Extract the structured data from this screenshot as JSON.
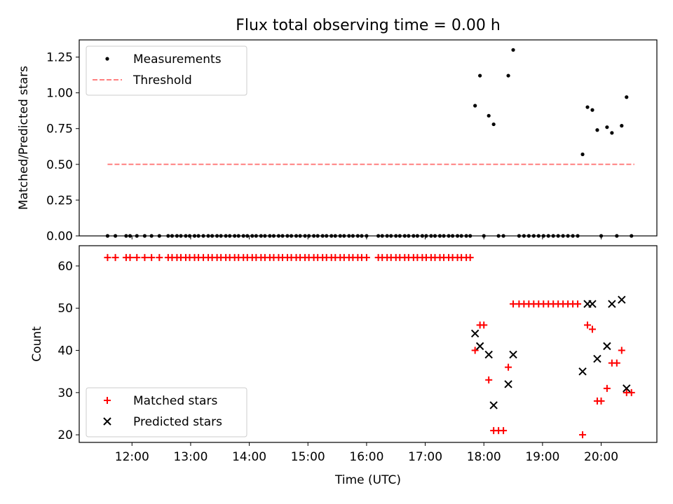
{
  "chart_data": [
    {
      "type": "scatter",
      "title": "Flux total observing time = 0.00 h",
      "xlabel": "",
      "ylabel": "Matched/Predicted stars",
      "xlim": [
        "11:06",
        "20:57"
      ],
      "ylim": [
        0,
        1.37
      ],
      "yticks": [
        0.0,
        0.25,
        0.5,
        0.75,
        1.0,
        1.25
      ],
      "yticklabels": [
        "0.00",
        "0.25",
        "0.50",
        "0.75",
        "1.00",
        "1.25"
      ],
      "legend_position": "top-left",
      "series": [
        {
          "name": "Measurements",
          "marker": "dot",
          "color": "#000000",
          "points": [
            [
              "11:35",
              0
            ],
            [
              "11:43",
              0
            ],
            [
              "11:54",
              0
            ],
            [
              "11:58",
              0
            ],
            [
              "12:05",
              0
            ],
            [
              "12:13",
              0
            ],
            [
              "12:20",
              0
            ],
            [
              "12:28",
              0
            ],
            [
              "12:37",
              0
            ],
            [
              "12:41",
              0
            ],
            [
              "12:46",
              0
            ],
            [
              "12:50",
              0
            ],
            [
              "12:55",
              0
            ],
            [
              "12:59",
              0
            ],
            [
              "13:04",
              0
            ],
            [
              "13:08",
              0
            ],
            [
              "13:13",
              0
            ],
            [
              "13:18",
              0
            ],
            [
              "13:22",
              0
            ],
            [
              "13:27",
              0
            ],
            [
              "13:31",
              0
            ],
            [
              "13:36",
              0
            ],
            [
              "13:40",
              0
            ],
            [
              "13:45",
              0
            ],
            [
              "13:49",
              0
            ],
            [
              "13:54",
              0
            ],
            [
              "13:58",
              0
            ],
            [
              "14:03",
              0
            ],
            [
              "14:07",
              0
            ],
            [
              "14:12",
              0
            ],
            [
              "14:16",
              0
            ],
            [
              "14:21",
              0
            ],
            [
              "14:25",
              0
            ],
            [
              "14:30",
              0
            ],
            [
              "14:34",
              0
            ],
            [
              "14:39",
              0
            ],
            [
              "14:43",
              0
            ],
            [
              "14:48",
              0
            ],
            [
              "14:52",
              0
            ],
            [
              "14:57",
              0
            ],
            [
              "15:01",
              0
            ],
            [
              "15:06",
              0
            ],
            [
              "15:10",
              0
            ],
            [
              "15:15",
              0
            ],
            [
              "15:19",
              0
            ],
            [
              "15:24",
              0
            ],
            [
              "15:28",
              0
            ],
            [
              "15:33",
              0
            ],
            [
              "15:37",
              0
            ],
            [
              "15:42",
              0
            ],
            [
              "15:46",
              0
            ],
            [
              "15:51",
              0
            ],
            [
              "15:55",
              0
            ],
            [
              "16:00",
              0
            ],
            [
              "16:12",
              0
            ],
            [
              "16:16",
              0
            ],
            [
              "16:21",
              0
            ],
            [
              "16:25",
              0
            ],
            [
              "16:30",
              0
            ],
            [
              "16:34",
              0
            ],
            [
              "16:39",
              0
            ],
            [
              "16:43",
              0
            ],
            [
              "16:48",
              0
            ],
            [
              "16:52",
              0
            ],
            [
              "16:57",
              0
            ],
            [
              "17:01",
              0
            ],
            [
              "17:06",
              0
            ],
            [
              "17:10",
              0
            ],
            [
              "17:15",
              0
            ],
            [
              "17:19",
              0
            ],
            [
              "17:24",
              0
            ],
            [
              "17:28",
              0
            ],
            [
              "17:33",
              0
            ],
            [
              "17:37",
              0
            ],
            [
              "17:42",
              0
            ],
            [
              "17:46",
              0
            ],
            [
              "17:51",
              0.91
            ],
            [
              "17:56",
              1.12
            ],
            [
              "18:00",
              0
            ],
            [
              "18:05",
              0.84
            ],
            [
              "18:10",
              0.78
            ],
            [
              "18:15",
              0
            ],
            [
              "18:20",
              0
            ],
            [
              "18:25",
              1.12
            ],
            [
              "18:30",
              1.3
            ],
            [
              "18:36",
              0
            ],
            [
              "18:41",
              0
            ],
            [
              "18:46",
              0
            ],
            [
              "18:51",
              0
            ],
            [
              "18:56",
              0
            ],
            [
              "19:01",
              0
            ],
            [
              "19:06",
              0
            ],
            [
              "19:11",
              0
            ],
            [
              "19:16",
              0
            ],
            [
              "19:21",
              0
            ],
            [
              "19:26",
              0
            ],
            [
              "19:31",
              0
            ],
            [
              "19:36",
              0
            ],
            [
              "19:41",
              0.57
            ],
            [
              "19:46",
              0.9
            ],
            [
              "19:51",
              0.88
            ],
            [
              "19:56",
              0.74
            ],
            [
              "20:00",
              0
            ],
            [
              "20:06",
              0.76
            ],
            [
              "20:11",
              0.72
            ],
            [
              "20:16",
              0
            ],
            [
              "20:21",
              0.77
            ],
            [
              "20:26",
              0.97
            ],
            [
              "20:31",
              0
            ]
          ]
        },
        {
          "name": "Threshold",
          "line": "dashed",
          "color": "#ff8080",
          "points": [
            [
              "11:35",
              0.5
            ],
            [
              "20:34",
              0.5
            ]
          ]
        }
      ]
    },
    {
      "type": "scatter",
      "title": "",
      "xlabel": "Time (UTC)",
      "ylabel": "Count",
      "xlim": [
        "11:06",
        "20:57"
      ],
      "ylim": [
        18.2,
        64.8
      ],
      "yticks": [
        20,
        30,
        40,
        50,
        60
      ],
      "yticklabels": [
        "20",
        "30",
        "40",
        "50",
        "60"
      ],
      "xticks": [
        "12:00",
        "13:00",
        "14:00",
        "15:00",
        "16:00",
        "17:00",
        "18:00",
        "19:00",
        "20:00"
      ],
      "legend_position": "bottom-left",
      "series": [
        {
          "name": "Matched stars",
          "marker": "plus",
          "color": "#ff0000",
          "points": [
            [
              "11:35",
              62
            ],
            [
              "11:43",
              62
            ],
            [
              "11:54",
              62
            ],
            [
              "11:58",
              62
            ],
            [
              "12:05",
              62
            ],
            [
              "12:13",
              62
            ],
            [
              "12:20",
              62
            ],
            [
              "12:28",
              62
            ],
            [
              "12:37",
              62
            ],
            [
              "12:41",
              62
            ],
            [
              "12:46",
              62
            ],
            [
              "12:50",
              62
            ],
            [
              "12:55",
              62
            ],
            [
              "12:59",
              62
            ],
            [
              "13:04",
              62
            ],
            [
              "13:08",
              62
            ],
            [
              "13:13",
              62
            ],
            [
              "13:18",
              62
            ],
            [
              "13:22",
              62
            ],
            [
              "13:27",
              62
            ],
            [
              "13:31",
              62
            ],
            [
              "13:36",
              62
            ],
            [
              "13:40",
              62
            ],
            [
              "13:45",
              62
            ],
            [
              "13:49",
              62
            ],
            [
              "13:54",
              62
            ],
            [
              "13:58",
              62
            ],
            [
              "14:03",
              62
            ],
            [
              "14:07",
              62
            ],
            [
              "14:12",
              62
            ],
            [
              "14:16",
              62
            ],
            [
              "14:21",
              62
            ],
            [
              "14:25",
              62
            ],
            [
              "14:30",
              62
            ],
            [
              "14:34",
              62
            ],
            [
              "14:39",
              62
            ],
            [
              "14:43",
              62
            ],
            [
              "14:48",
              62
            ],
            [
              "14:52",
              62
            ],
            [
              "14:57",
              62
            ],
            [
              "15:01",
              62
            ],
            [
              "15:06",
              62
            ],
            [
              "15:10",
              62
            ],
            [
              "15:15",
              62
            ],
            [
              "15:19",
              62
            ],
            [
              "15:24",
              62
            ],
            [
              "15:28",
              62
            ],
            [
              "15:33",
              62
            ],
            [
              "15:37",
              62
            ],
            [
              "15:42",
              62
            ],
            [
              "15:46",
              62
            ],
            [
              "15:51",
              62
            ],
            [
              "15:55",
              62
            ],
            [
              "16:00",
              62
            ],
            [
              "16:12",
              62
            ],
            [
              "16:16",
              62
            ],
            [
              "16:21",
              62
            ],
            [
              "16:25",
              62
            ],
            [
              "16:30",
              62
            ],
            [
              "16:34",
              62
            ],
            [
              "16:39",
              62
            ],
            [
              "16:43",
              62
            ],
            [
              "16:48",
              62
            ],
            [
              "16:52",
              62
            ],
            [
              "16:57",
              62
            ],
            [
              "17:01",
              62
            ],
            [
              "17:06",
              62
            ],
            [
              "17:10",
              62
            ],
            [
              "17:15",
              62
            ],
            [
              "17:19",
              62
            ],
            [
              "17:24",
              62
            ],
            [
              "17:28",
              62
            ],
            [
              "17:33",
              62
            ],
            [
              "17:37",
              62
            ],
            [
              "17:42",
              62
            ],
            [
              "17:46",
              62
            ],
            [
              "17:51",
              40
            ],
            [
              "17:56",
              46
            ],
            [
              "18:00",
              46
            ],
            [
              "18:05",
              33
            ],
            [
              "18:10",
              21
            ],
            [
              "18:15",
              21
            ],
            [
              "18:20",
              21
            ],
            [
              "18:25",
              36
            ],
            [
              "18:30",
              51
            ],
            [
              "18:36",
              51
            ],
            [
              "18:41",
              51
            ],
            [
              "18:46",
              51
            ],
            [
              "18:51",
              51
            ],
            [
              "18:56",
              51
            ],
            [
              "19:01",
              51
            ],
            [
              "19:06",
              51
            ],
            [
              "19:11",
              51
            ],
            [
              "19:16",
              51
            ],
            [
              "19:21",
              51
            ],
            [
              "19:26",
              51
            ],
            [
              "19:31",
              51
            ],
            [
              "19:36",
              51
            ],
            [
              "19:41",
              20
            ],
            [
              "19:46",
              46
            ],
            [
              "19:51",
              45
            ],
            [
              "19:56",
              28
            ],
            [
              "20:00",
              28
            ],
            [
              "20:06",
              31
            ],
            [
              "20:11",
              37
            ],
            [
              "20:16",
              37
            ],
            [
              "20:21",
              40
            ],
            [
              "20:26",
              30
            ],
            [
              "20:31",
              30
            ]
          ]
        },
        {
          "name": "Predicted stars",
          "marker": "x",
          "color": "#000000",
          "points": [
            [
              "17:51",
              44
            ],
            [
              "17:56",
              41
            ],
            [
              "18:05",
              39
            ],
            [
              "18:10",
              27
            ],
            [
              "18:25",
              32
            ],
            [
              "18:30",
              39
            ],
            [
              "19:41",
              35
            ],
            [
              "19:46",
              51
            ],
            [
              "19:51",
              51
            ],
            [
              "19:56",
              38
            ],
            [
              "20:06",
              41
            ],
            [
              "20:11",
              51
            ],
            [
              "20:21",
              52
            ],
            [
              "20:26",
              31
            ]
          ]
        }
      ]
    }
  ]
}
